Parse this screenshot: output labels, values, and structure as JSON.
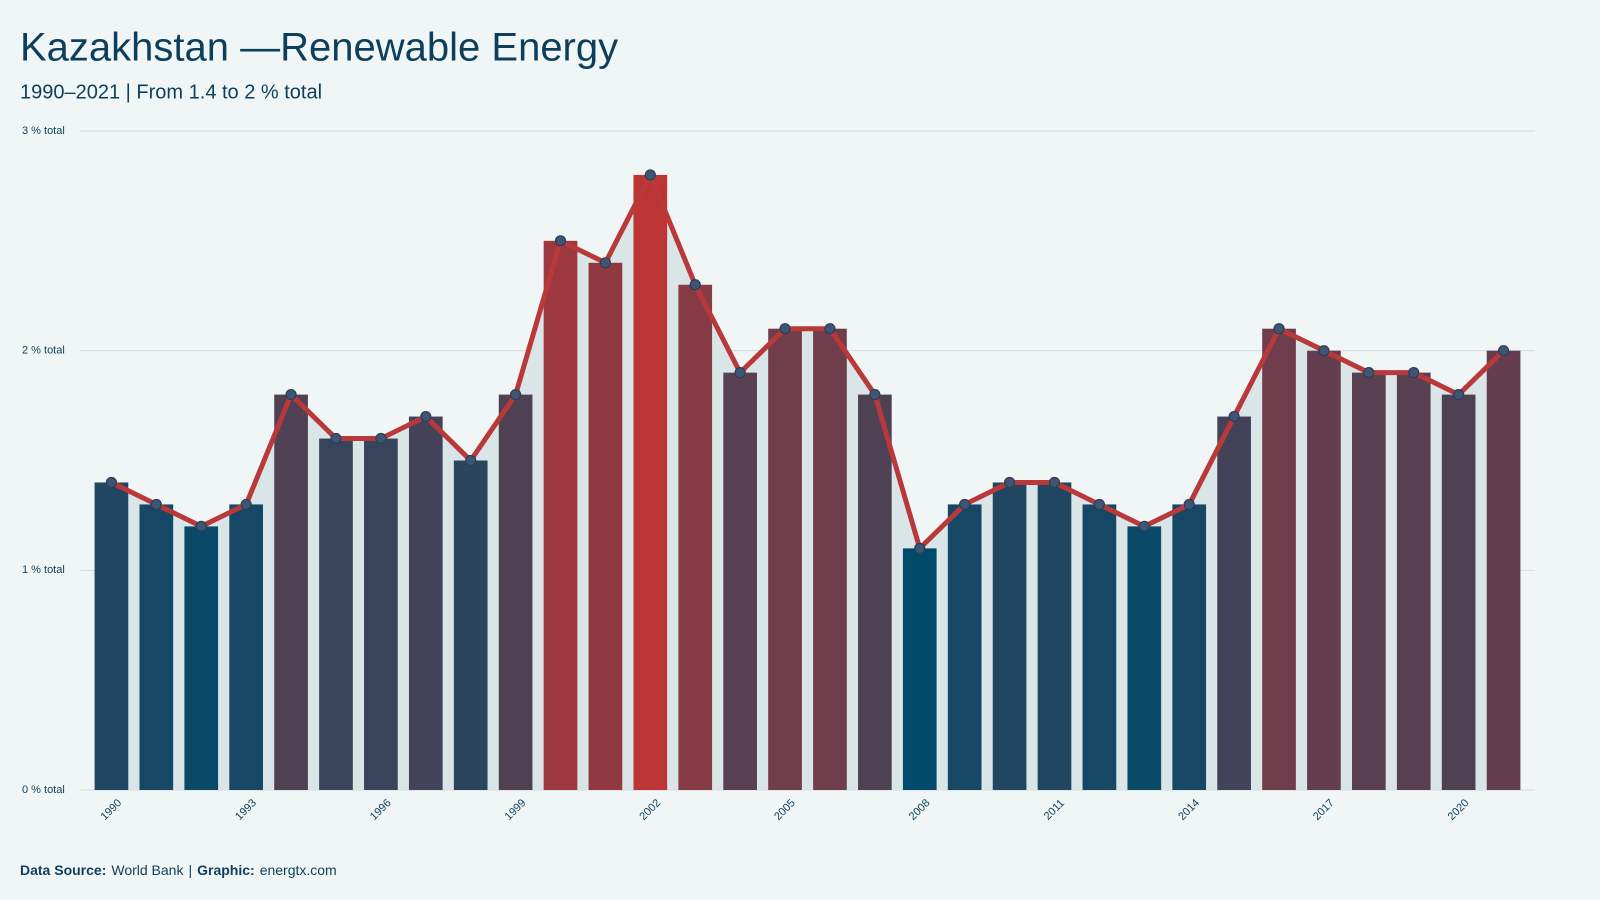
{
  "chart_data": {
    "type": "bar",
    "title": "Kazakhstan —Renewable Energy",
    "subtitle": "1990–2021 | From 1.4 to 2 % total",
    "x": [
      1990,
      1991,
      1992,
      1993,
      1994,
      1995,
      1996,
      1997,
      1998,
      1999,
      2000,
      2001,
      2002,
      2003,
      2004,
      2005,
      2006,
      2007,
      2008,
      2009,
      2010,
      2011,
      2012,
      2013,
      2014,
      2015,
      2016,
      2017,
      2018,
      2019,
      2020,
      2021
    ],
    "values": [
      1.4,
      1.3,
      1.2,
      1.3,
      1.8,
      1.6,
      1.6,
      1.7,
      1.5,
      1.8,
      2.5,
      2.4,
      2.8,
      2.3,
      1.9,
      2.1,
      2.1,
      1.8,
      1.1,
      1.3,
      1.4,
      1.4,
      1.3,
      1.2,
      1.3,
      1.7,
      2.1,
      2.0,
      1.9,
      1.9,
      1.8,
      2.0
    ],
    "xlim": [
      1989.3,
      2021.7
    ],
    "xticks": [
      1990,
      1993,
      1996,
      1999,
      2002,
      2005,
      2008,
      2011,
      2014,
      2017,
      2020
    ],
    "ylim": [
      0,
      3
    ],
    "yticks": [
      {
        "value": 0,
        "label": "0 % total"
      },
      {
        "value": 1,
        "label": "1 % total"
      },
      {
        "value": 2,
        "label": "2 % total"
      },
      {
        "value": 3,
        "label": "3 % total"
      }
    ],
    "grid": true,
    "color_scale": {
      "low": "#004a6b",
      "high": "#bd3434"
    },
    "line_color": "#b9393b",
    "marker_color": "#3e5574",
    "area_color": "#dae5e8",
    "footer": [
      {
        "text": "Data Source:",
        "bold": true
      },
      {
        "text": "World Bank",
        "bold": false
      },
      {
        "text": "|",
        "bold": false
      },
      {
        "text": "Graphic:",
        "bold": true
      },
      {
        "text": "energtx.com",
        "bold": false
      }
    ]
  }
}
